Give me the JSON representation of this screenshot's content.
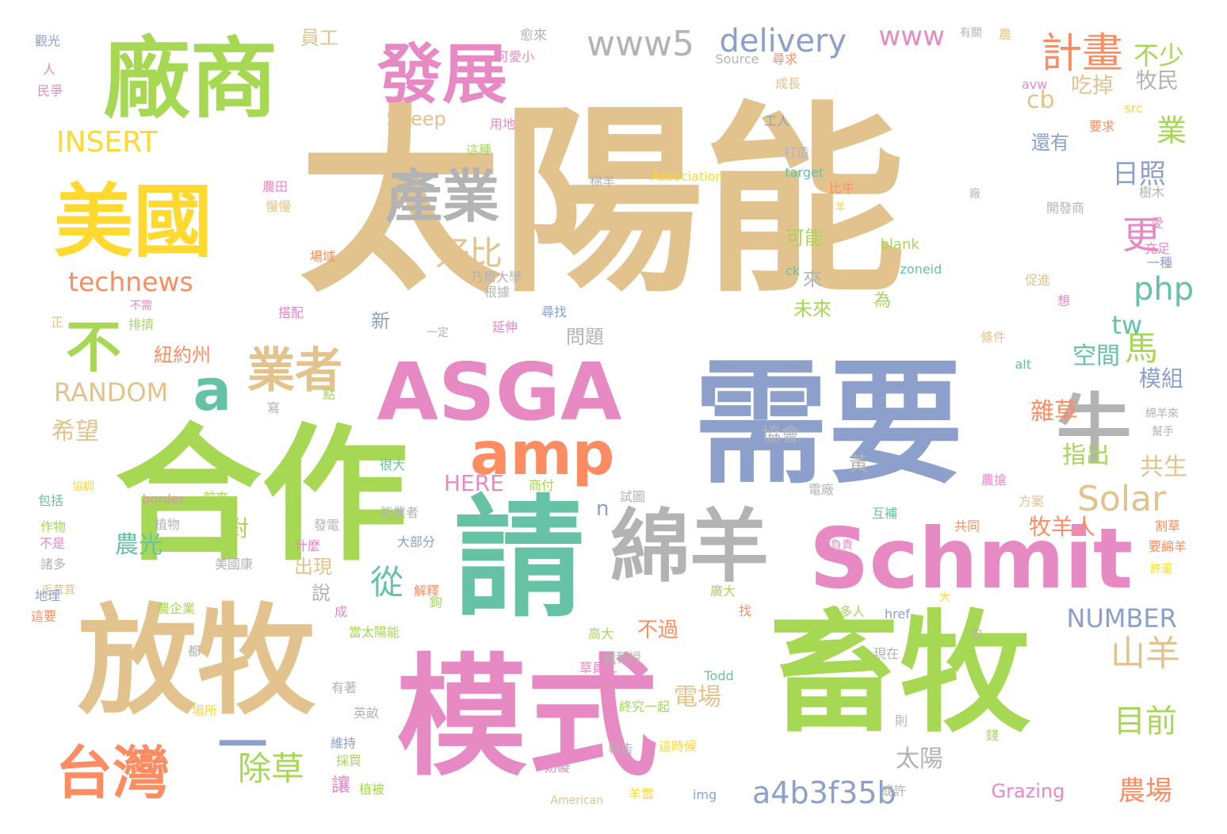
{
  "palette": {
    "tan": "#E2C38E",
    "green": "#A6D854",
    "blue": "#8DA0CB",
    "pink": "#E78AC3",
    "teal": "#66C2A5",
    "orange": "#FC8D62",
    "gray": "#B3B3B3",
    "yellow": "#FFD92F"
  },
  "words": [
    {
      "text": "太陽能",
      "c": "tan"
    },
    {
      "text": "需要",
      "c": "blue"
    },
    {
      "text": "合作",
      "c": "green"
    },
    {
      "text": "畜牧",
      "c": "green"
    },
    {
      "text": "請",
      "c": "teal"
    },
    {
      "text": "模式",
      "c": "pink"
    },
    {
      "text": "放牧",
      "c": "tan"
    },
    {
      "text": "廠商",
      "c": "green"
    },
    {
      "text": "美國",
      "c": "yellow"
    },
    {
      "text": "ASGA",
      "c": "pink"
    },
    {
      "text": "Schmit",
      "c": "pink"
    },
    {
      "text": "綿羊",
      "c": "gray"
    },
    {
      "text": "發展",
      "c": "pink"
    },
    {
      "text": "產業",
      "c": "gray"
    },
    {
      "text": "amp",
      "c": "orange"
    },
    {
      "text": "牛",
      "c": "gray"
    },
    {
      "text": "業者",
      "c": "tan"
    },
    {
      "text": "台灣",
      "c": "orange"
    },
    {
      "text": "一",
      "c": "blue"
    },
    {
      "text": "不",
      "c": "green"
    },
    {
      "text": "a",
      "c": "teal"
    },
    {
      "text": "www5",
      "c": "gray"
    },
    {
      "text": "delivery",
      "c": "blue"
    },
    {
      "text": "www",
      "c": "pink"
    },
    {
      "text": "計畫",
      "c": "orange"
    },
    {
      "text": "不少",
      "c": "green"
    },
    {
      "text": "牧民",
      "c": "gray"
    },
    {
      "text": "吃掉",
      "c": "tan"
    },
    {
      "text": "員工",
      "c": "tan"
    },
    {
      "text": "cb",
      "c": "tan"
    },
    {
      "text": "業",
      "c": "green"
    },
    {
      "text": "INSERT",
      "c": "yellow"
    },
    {
      "text": "Sheep",
      "c": "tan"
    },
    {
      "text": "technews",
      "c": "orange"
    },
    {
      "text": "好比",
      "c": "tan"
    },
    {
      "text": "日照",
      "c": "blue"
    },
    {
      "text": "更",
      "c": "pink"
    },
    {
      "text": "php",
      "c": "teal"
    },
    {
      "text": "還有",
      "c": "blue"
    },
    {
      "text": "可能",
      "c": "green"
    },
    {
      "text": "來",
      "c": "gray"
    },
    {
      "text": "馬",
      "c": "green"
    },
    {
      "text": "未來",
      "c": "green"
    },
    {
      "text": "為",
      "c": "green"
    },
    {
      "text": "新",
      "c": "blue"
    },
    {
      "text": "問題",
      "c": "gray"
    },
    {
      "text": "tw",
      "c": "teal"
    },
    {
      "text": "空間",
      "c": "teal"
    },
    {
      "text": "模組",
      "c": "blue"
    },
    {
      "text": "RANDOM",
      "c": "tan"
    },
    {
      "text": "希望",
      "c": "tan"
    },
    {
      "text": "協會",
      "c": "gray"
    },
    {
      "text": "紐約州",
      "c": "orange"
    },
    {
      "text": "雜草",
      "c": "orange"
    },
    {
      "text": "指出",
      "c": "green"
    },
    {
      "text": "共生",
      "c": "tan"
    },
    {
      "text": "HERE",
      "c": "pink"
    },
    {
      "text": "黃",
      "c": "gray"
    },
    {
      "text": "Solar",
      "c": "tan"
    },
    {
      "text": "n",
      "c": "blue"
    },
    {
      "text": "農光",
      "c": "teal"
    },
    {
      "text": "對",
      "c": "green"
    },
    {
      "text": "從",
      "c": "teal"
    },
    {
      "text": "牧羊人",
      "c": "orange"
    },
    {
      "text": "出現",
      "c": "tan"
    },
    {
      "text": "說",
      "c": "gray"
    },
    {
      "text": "NUMBER",
      "c": "blue"
    },
    {
      "text": "山羊",
      "c": "tan"
    },
    {
      "text": "不過",
      "c": "orange"
    },
    {
      "text": "目前",
      "c": "green"
    },
    {
      "text": "電場",
      "c": "tan"
    },
    {
      "text": "除草",
      "c": "green"
    },
    {
      "text": "太陽",
      "c": "gray"
    },
    {
      "text": "讓",
      "c": "pink"
    },
    {
      "text": "a4b3f35b",
      "c": "blue"
    },
    {
      "text": "農場",
      "c": "orange"
    },
    {
      "text": "Grazing",
      "c": "pink"
    },
    {
      "text": "觀光",
      "c": "blue"
    },
    {
      "text": "人",
      "c": "pink"
    },
    {
      "text": "民爭",
      "c": "pink"
    },
    {
      "text": "愈來",
      "c": "gray"
    },
    {
      "text": "可愛小",
      "c": "pink"
    },
    {
      "text": "Source",
      "c": "gray"
    },
    {
      "text": "有關",
      "c": "gray"
    },
    {
      "text": "農",
      "c": "tan"
    },
    {
      "text": "尋求",
      "c": "orange"
    },
    {
      "text": "avw",
      "c": "pink"
    },
    {
      "text": "成長",
      "c": "tan"
    },
    {
      "text": "src",
      "c": "yellow"
    },
    {
      "text": "用地",
      "c": "pink"
    },
    {
      "text": "要求",
      "c": "orange"
    },
    {
      "text": "工人",
      "c": "blue"
    },
    {
      "text": "這種",
      "c": "green"
    },
    {
      "text": "棉羊",
      "c": "gray"
    },
    {
      "text": "打造",
      "c": "gray"
    },
    {
      "text": "Association",
      "c": "yellow"
    },
    {
      "text": "target",
      "c": "teal"
    },
    {
      "text": "比牛",
      "c": "orange"
    },
    {
      "text": "廠",
      "c": "gray"
    },
    {
      "text": "樹木",
      "c": "gray"
    },
    {
      "text": "農田",
      "c": "pink"
    },
    {
      "text": "慢慢",
      "c": "tan"
    },
    {
      "text": "羊",
      "c": "yellow"
    },
    {
      "text": "開發商",
      "c": "gray"
    },
    {
      "text": "愛",
      "c": "pink"
    },
    {
      "text": "充足",
      "c": "pink"
    },
    {
      "text": "blank",
      "c": "green"
    },
    {
      "text": "場域",
      "c": "orange"
    },
    {
      "text": "一種",
      "c": "blue"
    },
    {
      "text": "乃爾大學",
      "c": "gray"
    },
    {
      "text": "根據",
      "c": "gray"
    },
    {
      "text": "ck",
      "c": "teal"
    },
    {
      "text": "zoneid",
      "c": "teal"
    },
    {
      "text": "促進",
      "c": "tan"
    },
    {
      "text": "想",
      "c": "pink"
    },
    {
      "text": "不需",
      "c": "pink"
    },
    {
      "text": "搭配",
      "c": "pink"
    },
    {
      "text": "排擠",
      "c": "green"
    },
    {
      "text": "尋找",
      "c": "blue"
    },
    {
      "text": "一定",
      "c": "gray"
    },
    {
      "text": "延伸",
      "c": "pink"
    },
    {
      "text": "條件",
      "c": "tan"
    },
    {
      "text": "alt",
      "c": "teal"
    },
    {
      "text": "正",
      "c": "tan"
    },
    {
      "text": "綿羊來",
      "c": "gray"
    },
    {
      "text": "幫手",
      "c": "gray"
    },
    {
      "text": "包括",
      "c": "teal"
    },
    {
      "text": "border",
      "c": "pink"
    },
    {
      "text": "前來",
      "c": "green"
    },
    {
      "text": "試圖",
      "c": "gray"
    },
    {
      "text": "電廠",
      "c": "gray"
    },
    {
      "text": "農搶",
      "c": "pink"
    },
    {
      "text": "方案",
      "c": "tan"
    },
    {
      "text": "作物",
      "c": "green"
    },
    {
      "text": "植物",
      "c": "gray"
    },
    {
      "text": "發電",
      "c": "gray"
    },
    {
      "text": "能業者",
      "c": "gray"
    },
    {
      "text": "互補",
      "c": "teal"
    },
    {
      "text": "共同",
      "c": "orange"
    },
    {
      "text": "割草",
      "c": "orange"
    },
    {
      "text": "不是",
      "c": "pink"
    },
    {
      "text": "諸多",
      "c": "gray"
    },
    {
      "text": "什麼",
      "c": "pink"
    },
    {
      "text": "大部分",
      "c": "blue"
    },
    {
      "text": "負責",
      "c": "pink"
    },
    {
      "text": "要綿羊",
      "c": "orange"
    },
    {
      "text": "毛茸茸",
      "c": "tan"
    },
    {
      "text": "美國康",
      "c": "gray"
    },
    {
      "text": "解釋",
      "c": "orange"
    },
    {
      "text": "廣大",
      "c": "green"
    },
    {
      "text": "許還",
      "c": "yellow"
    },
    {
      "text": "地理",
      "c": "blue"
    },
    {
      "text": "農企業",
      "c": "green"
    },
    {
      "text": "成",
      "c": "pink"
    },
    {
      "text": "找",
      "c": "orange"
    },
    {
      "text": "愈多人",
      "c": "green"
    },
    {
      "text": "href",
      "c": "blue"
    },
    {
      "text": "大",
      "c": "yellow"
    },
    {
      "text": "這要",
      "c": "orange"
    },
    {
      "text": "都",
      "c": "gray"
    },
    {
      "text": "當太陽能",
      "c": "green"
    },
    {
      "text": "高大",
      "c": "green"
    },
    {
      "text": "約",
      "c": "gray"
    },
    {
      "text": "副教授",
      "c": "gray"
    },
    {
      "text": "現在",
      "c": "gray"
    },
    {
      "text": "有著",
      "c": "gray"
    },
    {
      "text": "草員工",
      "c": "pink"
    },
    {
      "text": "Todd",
      "c": "teal"
    },
    {
      "text": "場所",
      "c": "yellow"
    },
    {
      "text": "英畝",
      "c": "gray"
    },
    {
      "text": "終究一起",
      "c": "green"
    },
    {
      "text": "則",
      "c": "gray"
    },
    {
      "text": "維持",
      "c": "blue"
    },
    {
      "text": "這時候",
      "c": "yellow"
    },
    {
      "text": "錢",
      "c": "green"
    },
    {
      "text": "採買",
      "c": "green"
    },
    {
      "text": "報告",
      "c": "gray"
    },
    {
      "text": "妨礙",
      "c": "pink"
    },
    {
      "text": "植被",
      "c": "green"
    },
    {
      "text": "img",
      "c": "blue"
    },
    {
      "text": "或許",
      "c": "gray"
    },
    {
      "text": "American",
      "c": "tan"
    },
    {
      "text": "羊當",
      "c": "yellow"
    },
    {
      "text": "商付",
      "c": "green"
    },
    {
      "text": "很大",
      "c": "teal"
    },
    {
      "text": "協調",
      "c": "yellow"
    },
    {
      "text": "點",
      "c": "green"
    },
    {
      "text": "寫",
      "c": "gray"
    },
    {
      "text": "鉤",
      "c": "green"
    }
  ]
}
